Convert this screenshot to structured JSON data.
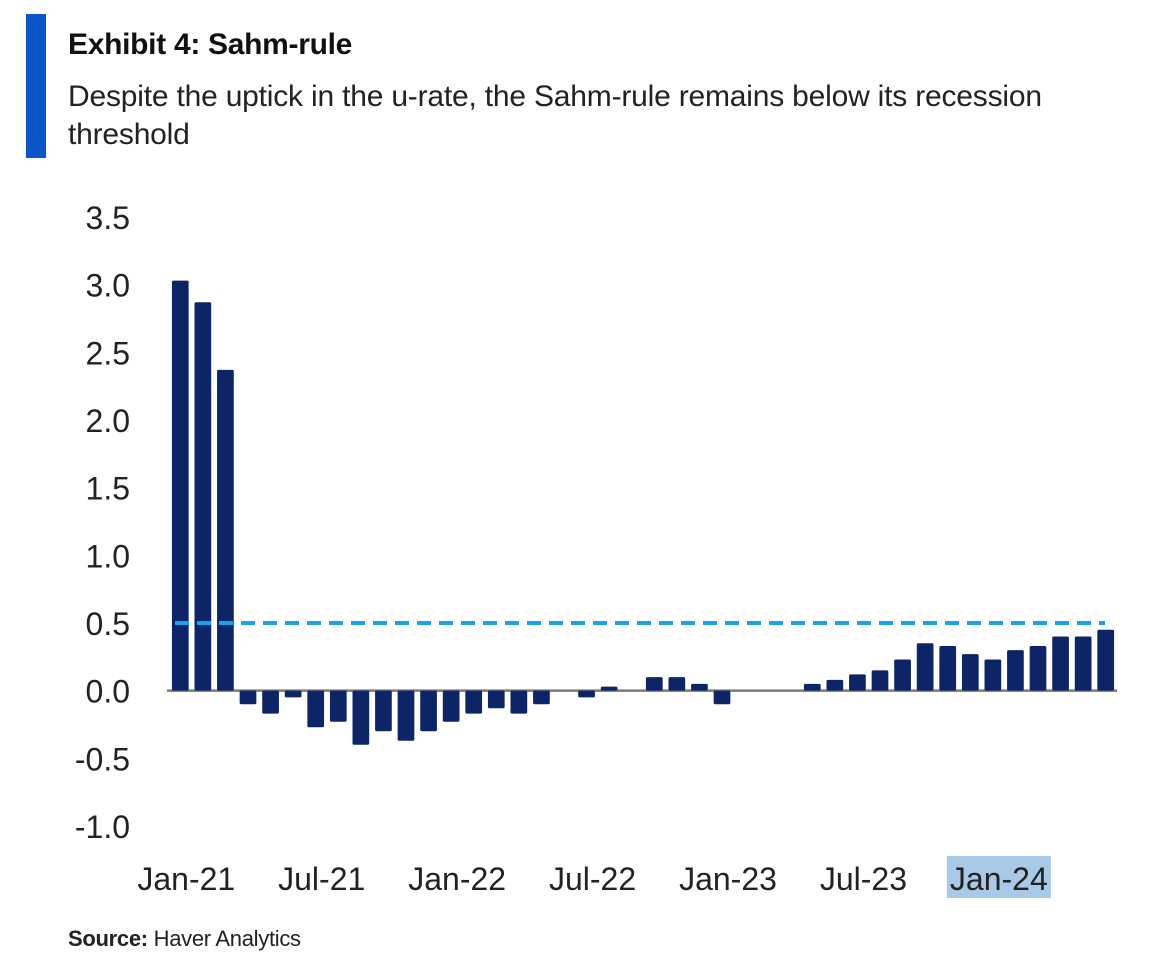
{
  "header": {
    "title": "Exhibit 4: Sahm-rule",
    "subtitle": "Despite the uptick in the u-rate, the Sahm-rule remains below its recession threshold"
  },
  "footer": {
    "source_label": "Source:",
    "source_text": "Haver Analytics"
  },
  "colors": {
    "accent": "#0a56c9",
    "bar": "#0d2466",
    "threshold_line": "#1aa3e8",
    "zero_line": "#7a7a7a",
    "highlight": "#a9c9e8"
  },
  "chart_data": {
    "type": "bar",
    "title": "Exhibit 4: Sahm-rule",
    "subtitle": "Despite the uptick in the u-rate, the Sahm-rule remains below its recession threshold",
    "xlabel": "",
    "ylabel": "",
    "ylim": [
      -1.0,
      3.5
    ],
    "yticks": [
      "3.5",
      "3.0",
      "2.5",
      "2.0",
      "1.5",
      "1.0",
      "0.5",
      "0.0",
      "-0.5",
      "-1.0"
    ],
    "ytick_values": [
      3.5,
      3.0,
      2.5,
      2.0,
      1.5,
      1.0,
      0.5,
      0.0,
      -0.5,
      -1.0
    ],
    "x_tick_labels": [
      "Jan-21",
      "Jul-21",
      "Jan-22",
      "Jul-22",
      "Jan-23",
      "Jul-23",
      "Jan-24"
    ],
    "x_tick_index": [
      0,
      6,
      12,
      18,
      24,
      30,
      36
    ],
    "highlighted_tick": "Jan-24",
    "threshold": 0.5,
    "grid": false,
    "legend": "none",
    "categories": [
      "Jan-21",
      "Feb-21",
      "Mar-21",
      "Apr-21",
      "May-21",
      "Jun-21",
      "Jul-21",
      "Aug-21",
      "Sep-21",
      "Oct-21",
      "Nov-21",
      "Dec-21",
      "Jan-22",
      "Feb-22",
      "Mar-22",
      "Apr-22",
      "May-22",
      "Jun-22",
      "Jul-22",
      "Aug-22",
      "Sep-22",
      "Oct-22",
      "Nov-22",
      "Dec-22",
      "Jan-23",
      "Feb-23",
      "Mar-23",
      "Apr-23",
      "May-23",
      "Jun-23",
      "Jul-23",
      "Aug-23",
      "Sep-23",
      "Oct-23",
      "Nov-23",
      "Dec-23",
      "Jan-24",
      "Feb-24",
      "Mar-24",
      "Apr-24",
      "May-24",
      "Jun-24"
    ],
    "values": [
      3.03,
      2.87,
      2.37,
      -0.1,
      -0.17,
      -0.05,
      -0.27,
      -0.23,
      -0.4,
      -0.3,
      -0.37,
      -0.3,
      -0.23,
      -0.17,
      -0.13,
      -0.17,
      -0.1,
      0.0,
      -0.05,
      0.03,
      0.0,
      0.1,
      0.1,
      0.05,
      -0.1,
      0.0,
      0.0,
      0.0,
      0.05,
      0.08,
      0.12,
      0.15,
      0.23,
      0.35,
      0.33,
      0.27,
      0.23,
      0.3,
      0.33,
      0.4,
      0.4,
      0.45
    ]
  }
}
